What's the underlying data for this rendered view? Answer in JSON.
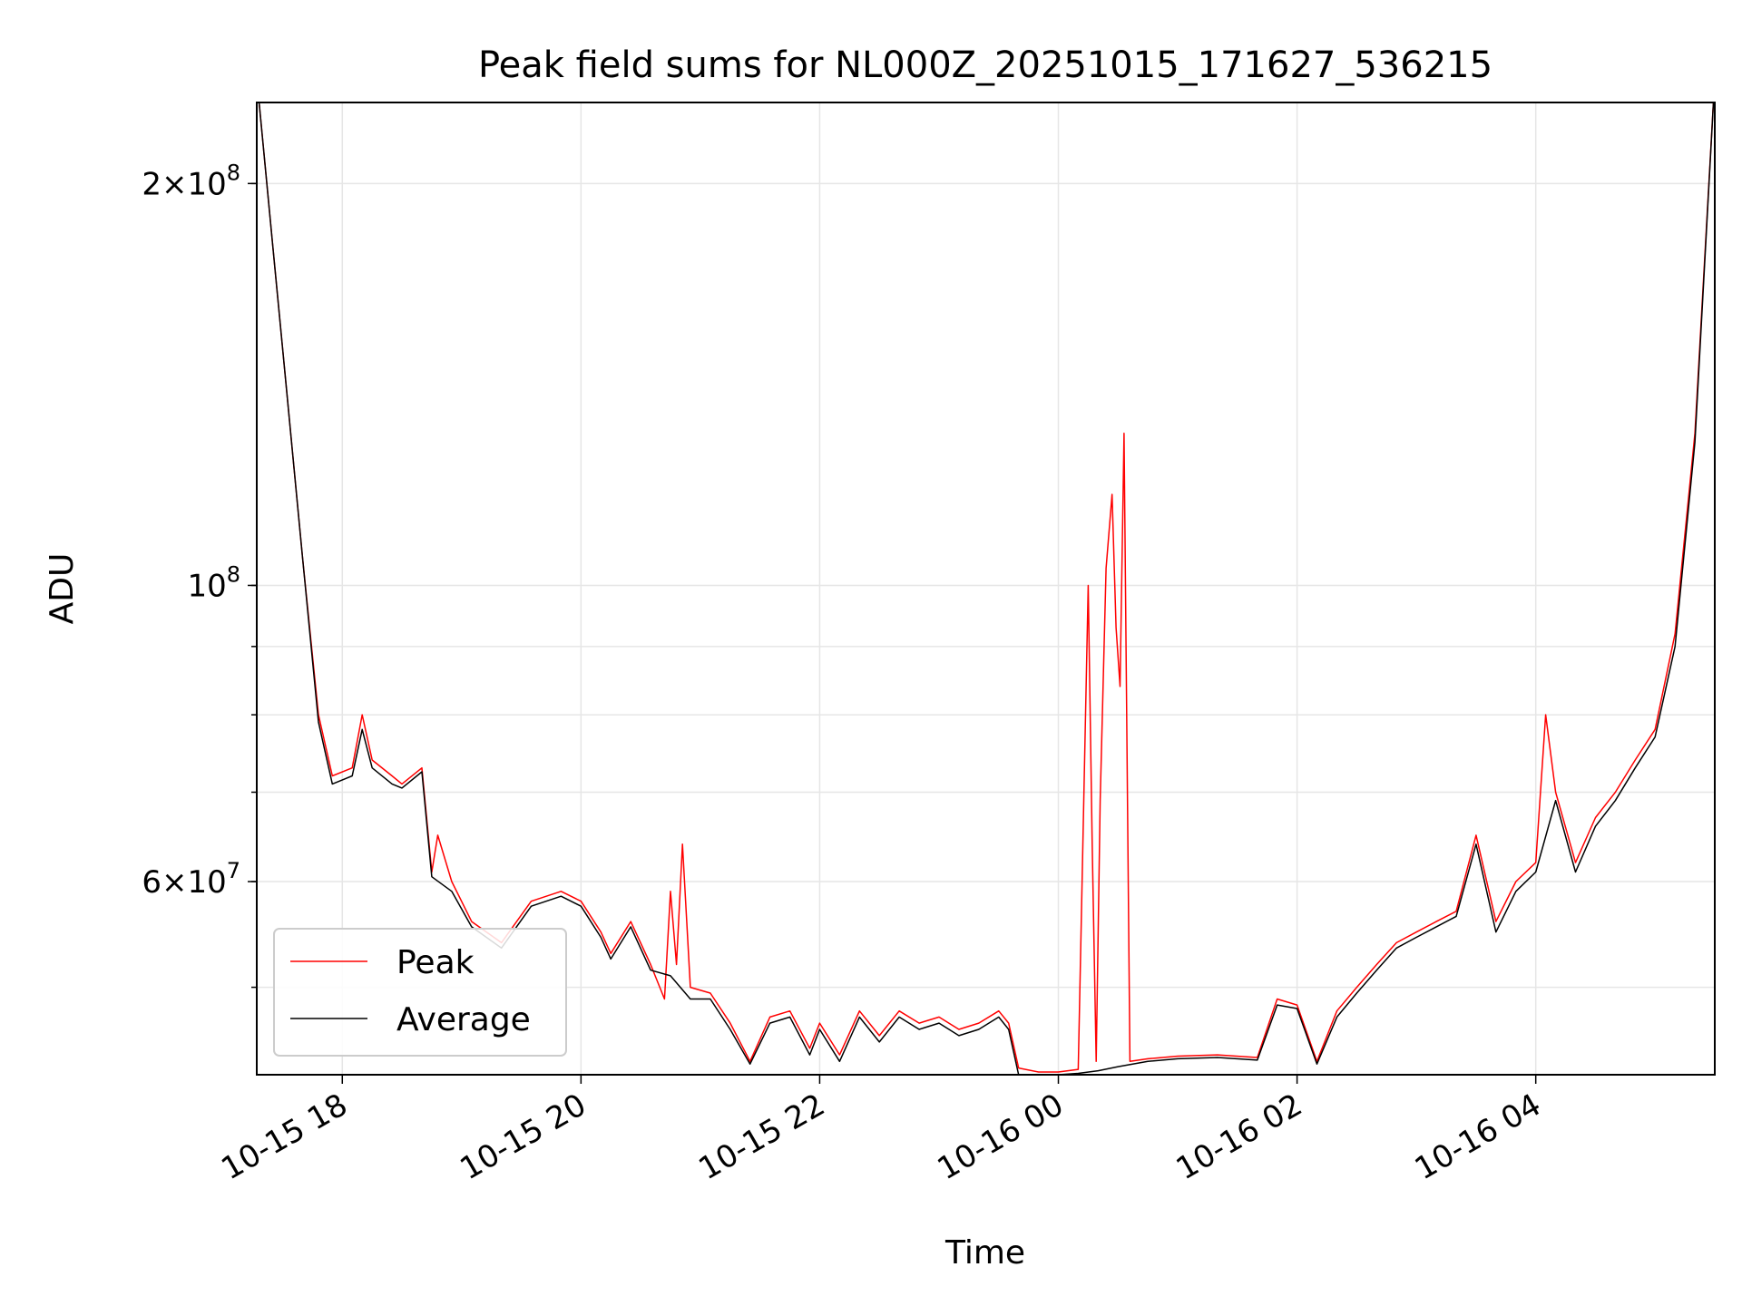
{
  "chart_data": {
    "type": "line",
    "title": "Peak field sums for NL000Z_20251015_171627_536215",
    "xlabel": "Time",
    "ylabel": "ADU",
    "y_scale": "log",
    "ylim": [
      43000000,
      230000000
    ],
    "xlim": [
      "2025-10-15 17:17",
      "2025-10-16 05:30"
    ],
    "grid": true,
    "legend_position": "lower-left",
    "x_tick_labels": [
      "10-15 18",
      "10-15 20",
      "10-15 22",
      "10-16 00",
      "10-16 02",
      "10-16 04"
    ],
    "x_ticks": [
      "2025-10-15 18:00",
      "2025-10-15 20:00",
      "2025-10-15 22:00",
      "2025-10-16 00:00",
      "2025-10-16 02:00",
      "2025-10-16 04:00"
    ],
    "y_major_ticks": [
      {
        "value": 200000000,
        "mantissa": "2",
        "exponent": "8"
      },
      {
        "value": 100000000,
        "mantissa": "",
        "exponent": "8"
      },
      {
        "value": 60000000,
        "mantissa": "6",
        "exponent": "7"
      }
    ],
    "series": [
      {
        "name": "Peak",
        "color": "#ff0000",
        "x": [
          "2025-10-15 17:17",
          "2025-10-15 17:25",
          "2025-10-15 17:32",
          "2025-10-15 17:40",
          "2025-10-15 17:48",
          "2025-10-15 17:55",
          "2025-10-15 18:05",
          "2025-10-15 18:10",
          "2025-10-15 18:15",
          "2025-10-15 18:25",
          "2025-10-15 18:30",
          "2025-10-15 18:40",
          "2025-10-15 18:45",
          "2025-10-15 18:48",
          "2025-10-15 18:55",
          "2025-10-15 19:05",
          "2025-10-15 19:20",
          "2025-10-15 19:35",
          "2025-10-15 19:50",
          "2025-10-15 20:00",
          "2025-10-15 20:10",
          "2025-10-15 20:15",
          "2025-10-15 20:25",
          "2025-10-15 20:35",
          "2025-10-15 20:42",
          "2025-10-15 20:45",
          "2025-10-15 20:48",
          "2025-10-15 20:51",
          "2025-10-15 20:55",
          "2025-10-15 21:05",
          "2025-10-15 21:15",
          "2025-10-15 21:25",
          "2025-10-15 21:35",
          "2025-10-15 21:45",
          "2025-10-15 21:55",
          "2025-10-15 22:00",
          "2025-10-15 22:10",
          "2025-10-15 22:20",
          "2025-10-15 22:30",
          "2025-10-15 22:40",
          "2025-10-15 22:50",
          "2025-10-15 23:00",
          "2025-10-15 23:10",
          "2025-10-15 23:20",
          "2025-10-15 23:30",
          "2025-10-15 23:35",
          "2025-10-15 23:40",
          "2025-10-15 23:50",
          "2025-10-16 00:00",
          "2025-10-16 00:10",
          "2025-10-16 00:15",
          "2025-10-16 00:17",
          "2025-10-16 00:19",
          "2025-10-16 00:21",
          "2025-10-16 00:24",
          "2025-10-16 00:27",
          "2025-10-16 00:29",
          "2025-10-16 00:31",
          "2025-10-16 00:33",
          "2025-10-16 00:36",
          "2025-10-16 00:45",
          "2025-10-16 01:00",
          "2025-10-16 01:20",
          "2025-10-16 01:40",
          "2025-10-16 01:50",
          "2025-10-16 02:00",
          "2025-10-16 02:10",
          "2025-10-16 02:20",
          "2025-10-16 02:30",
          "2025-10-16 02:40",
          "2025-10-16 02:50",
          "2025-10-16 03:00",
          "2025-10-16 03:10",
          "2025-10-16 03:20",
          "2025-10-16 03:30",
          "2025-10-16 03:40",
          "2025-10-16 03:50",
          "2025-10-16 04:00",
          "2025-10-16 04:05",
          "2025-10-16 04:10",
          "2025-10-16 04:20",
          "2025-10-16 04:30",
          "2025-10-16 04:40",
          "2025-10-16 04:50",
          "2025-10-16 05:00",
          "2025-10-16 05:10",
          "2025-10-16 05:20",
          "2025-10-16 05:30"
        ],
        "values": [
          240000000,
          180000000,
          140000000,
          105000000,
          80000000,
          72000000,
          73000000,
          80000000,
          74000000,
          72000000,
          71000000,
          73000000,
          61000000,
          65000000,
          60000000,
          56000000,
          54000000,
          58000000,
          59000000,
          58000000,
          55000000,
          53000000,
          56000000,
          52000000,
          49000000,
          59000000,
          52000000,
          64000000,
          50000000,
          49500000,
          47000000,
          44000000,
          47500000,
          48000000,
          45000000,
          47000000,
          44500000,
          48000000,
          46000000,
          48000000,
          47000000,
          47500000,
          46500000,
          47000000,
          48000000,
          47000000,
          43500000,
          43200000,
          43200000,
          43400000,
          100000000,
          64000000,
          44000000,
          69000000,
          103000000,
          117000000,
          93000000,
          84000000,
          130000000,
          44000000,
          44200000,
          44400000,
          44500000,
          44300000,
          49000000,
          48500000,
          44000000,
          48000000,
          50000000,
          52000000,
          54000000,
          55000000,
          56000000,
          57000000,
          65000000,
          56000000,
          60000000,
          62000000,
          80000000,
          70000000,
          62000000,
          67000000,
          70000000,
          74000000,
          78000000,
          92000000,
          130000000,
          240000000
        ]
      },
      {
        "name": "Average",
        "color": "#000000",
        "x": [
          "2025-10-15 17:17",
          "2025-10-15 17:25",
          "2025-10-15 17:32",
          "2025-10-15 17:40",
          "2025-10-15 17:48",
          "2025-10-15 17:55",
          "2025-10-15 18:05",
          "2025-10-15 18:10",
          "2025-10-15 18:15",
          "2025-10-15 18:25",
          "2025-10-15 18:30",
          "2025-10-15 18:40",
          "2025-10-15 18:45",
          "2025-10-15 18:55",
          "2025-10-15 19:05",
          "2025-10-15 19:20",
          "2025-10-15 19:35",
          "2025-10-15 19:50",
          "2025-10-15 20:00",
          "2025-10-15 20:10",
          "2025-10-15 20:15",
          "2025-10-15 20:25",
          "2025-10-15 20:35",
          "2025-10-15 20:45",
          "2025-10-15 20:55",
          "2025-10-15 21:05",
          "2025-10-15 21:15",
          "2025-10-15 21:25",
          "2025-10-15 21:35",
          "2025-10-15 21:45",
          "2025-10-15 21:55",
          "2025-10-15 22:00",
          "2025-10-15 22:10",
          "2025-10-15 22:20",
          "2025-10-15 22:30",
          "2025-10-15 22:40",
          "2025-10-15 22:50",
          "2025-10-15 23:00",
          "2025-10-15 23:10",
          "2025-10-15 23:20",
          "2025-10-15 23:30",
          "2025-10-15 23:35",
          "2025-10-15 23:40",
          "2025-10-15 23:50",
          "2025-10-16 00:00",
          "2025-10-16 00:10",
          "2025-10-16 00:20",
          "2025-10-16 00:30",
          "2025-10-16 00:45",
          "2025-10-16 01:00",
          "2025-10-16 01:20",
          "2025-10-16 01:40",
          "2025-10-16 01:50",
          "2025-10-16 02:00",
          "2025-10-16 02:10",
          "2025-10-16 02:20",
          "2025-10-16 02:30",
          "2025-10-16 02:40",
          "2025-10-16 02:50",
          "2025-10-16 03:00",
          "2025-10-16 03:10",
          "2025-10-16 03:20",
          "2025-10-16 03:30",
          "2025-10-16 03:40",
          "2025-10-16 03:50",
          "2025-10-16 04:00",
          "2025-10-16 04:10",
          "2025-10-16 04:20",
          "2025-10-16 04:30",
          "2025-10-16 04:40",
          "2025-10-16 04:50",
          "2025-10-16 05:00",
          "2025-10-16 05:10",
          "2025-10-16 05:20",
          "2025-10-16 05:30"
        ],
        "values": [
          240000000,
          180000000,
          140000000,
          105000000,
          79000000,
          71000000,
          72000000,
          78000000,
          73000000,
          71000000,
          70500000,
          72500000,
          60500000,
          59000000,
          55500000,
          53500000,
          57500000,
          58500000,
          57500000,
          54500000,
          52500000,
          55500000,
          51500000,
          51000000,
          49000000,
          49000000,
          46500000,
          43800000,
          47000000,
          47500000,
          44500000,
          46500000,
          44000000,
          47500000,
          45500000,
          47500000,
          46500000,
          47000000,
          46000000,
          46500000,
          47500000,
          46500000,
          43000000,
          43000000,
          43000000,
          43100000,
          43300000,
          43600000,
          44000000,
          44200000,
          44300000,
          44100000,
          48500000,
          48200000,
          43800000,
          47500000,
          49500000,
          51500000,
          53500000,
          54500000,
          55500000,
          56500000,
          64000000,
          55000000,
          59000000,
          61000000,
          69000000,
          61000000,
          66000000,
          69000000,
          73000000,
          77000000,
          90000000,
          128000000,
          240000000
        ]
      }
    ]
  }
}
